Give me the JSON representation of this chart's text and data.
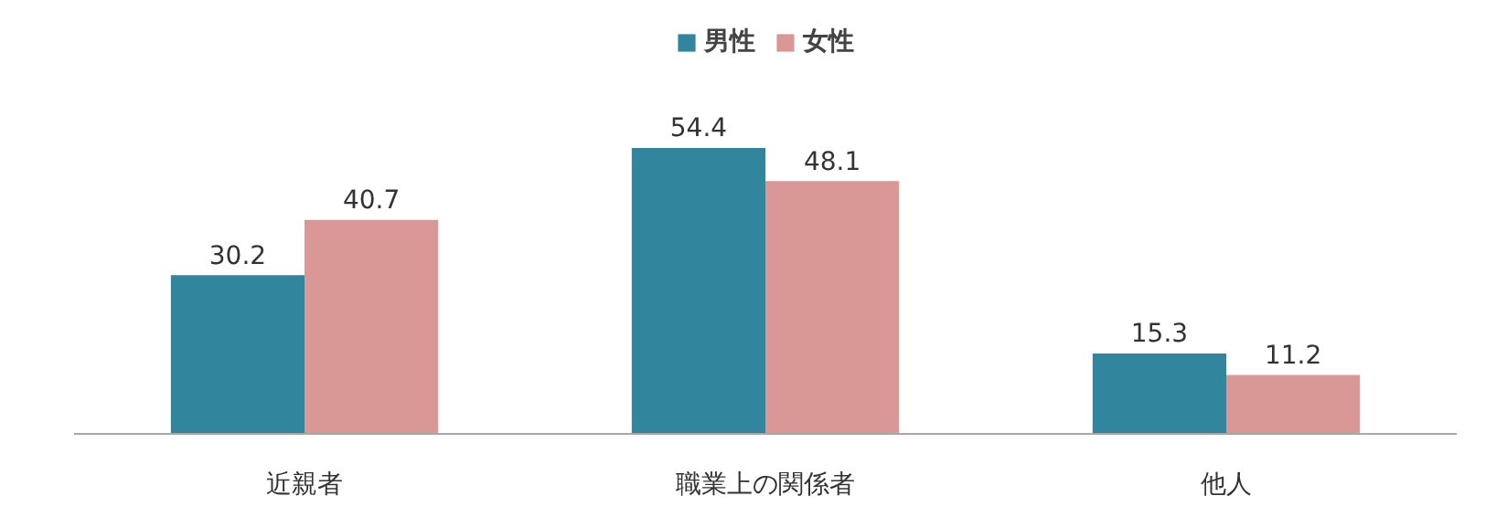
{
  "chart_data": {
    "type": "bar",
    "categories": [
      "近親者",
      "職業上の関係者",
      "他人"
    ],
    "series": [
      {
        "name": "男性",
        "color": "#31859c",
        "values": [
          30.2,
          54.4,
          15.3
        ]
      },
      {
        "name": "女性",
        "color": "#d99795",
        "values": [
          40.7,
          48.1,
          11.2
        ]
      }
    ],
    "data_labels": true,
    "legend": "top",
    "grid": false
  }
}
